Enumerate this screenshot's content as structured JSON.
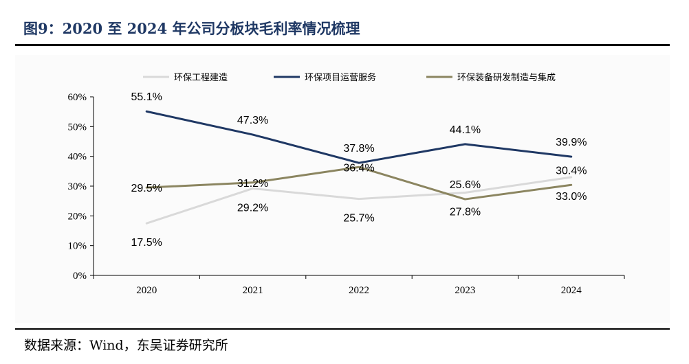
{
  "header": {
    "title": "图9：2020 至 2024 年公司分板块毛利率情况梳理"
  },
  "footer": {
    "source": "数据来源：Wind，东吴证券研究所"
  },
  "chart_data": {
    "type": "line",
    "categories": [
      "2020",
      "2021",
      "2022",
      "2023",
      "2024"
    ],
    "ylim": [
      0,
      60
    ],
    "y_ticks": [
      "0%",
      "10%",
      "20%",
      "30%",
      "40%",
      "50%",
      "60%"
    ],
    "legend_position": "top",
    "series": [
      {
        "name": "环保工程建造",
        "color": "#d9d9d9",
        "values": [
          17.5,
          29.2,
          25.7,
          27.8,
          33.0
        ],
        "labels": [
          "17.5%",
          "29.2%",
          "25.7%",
          "27.8%",
          "33.0%"
        ]
      },
      {
        "name": "环保项目运营服务",
        "color": "#1f3864",
        "values": [
          55.1,
          47.3,
          37.8,
          44.1,
          39.9
        ],
        "labels": [
          "55.1%",
          "47.3%",
          "37.8%",
          "44.1%",
          "39.9%"
        ]
      },
      {
        "name": "环保装备研发制造与集成",
        "color": "#8b8560",
        "values": [
          29.5,
          31.2,
          36.4,
          25.6,
          30.4
        ],
        "labels": [
          "29.5%",
          "31.2%",
          "36.4%",
          "25.6%",
          "30.4%"
        ]
      }
    ]
  }
}
